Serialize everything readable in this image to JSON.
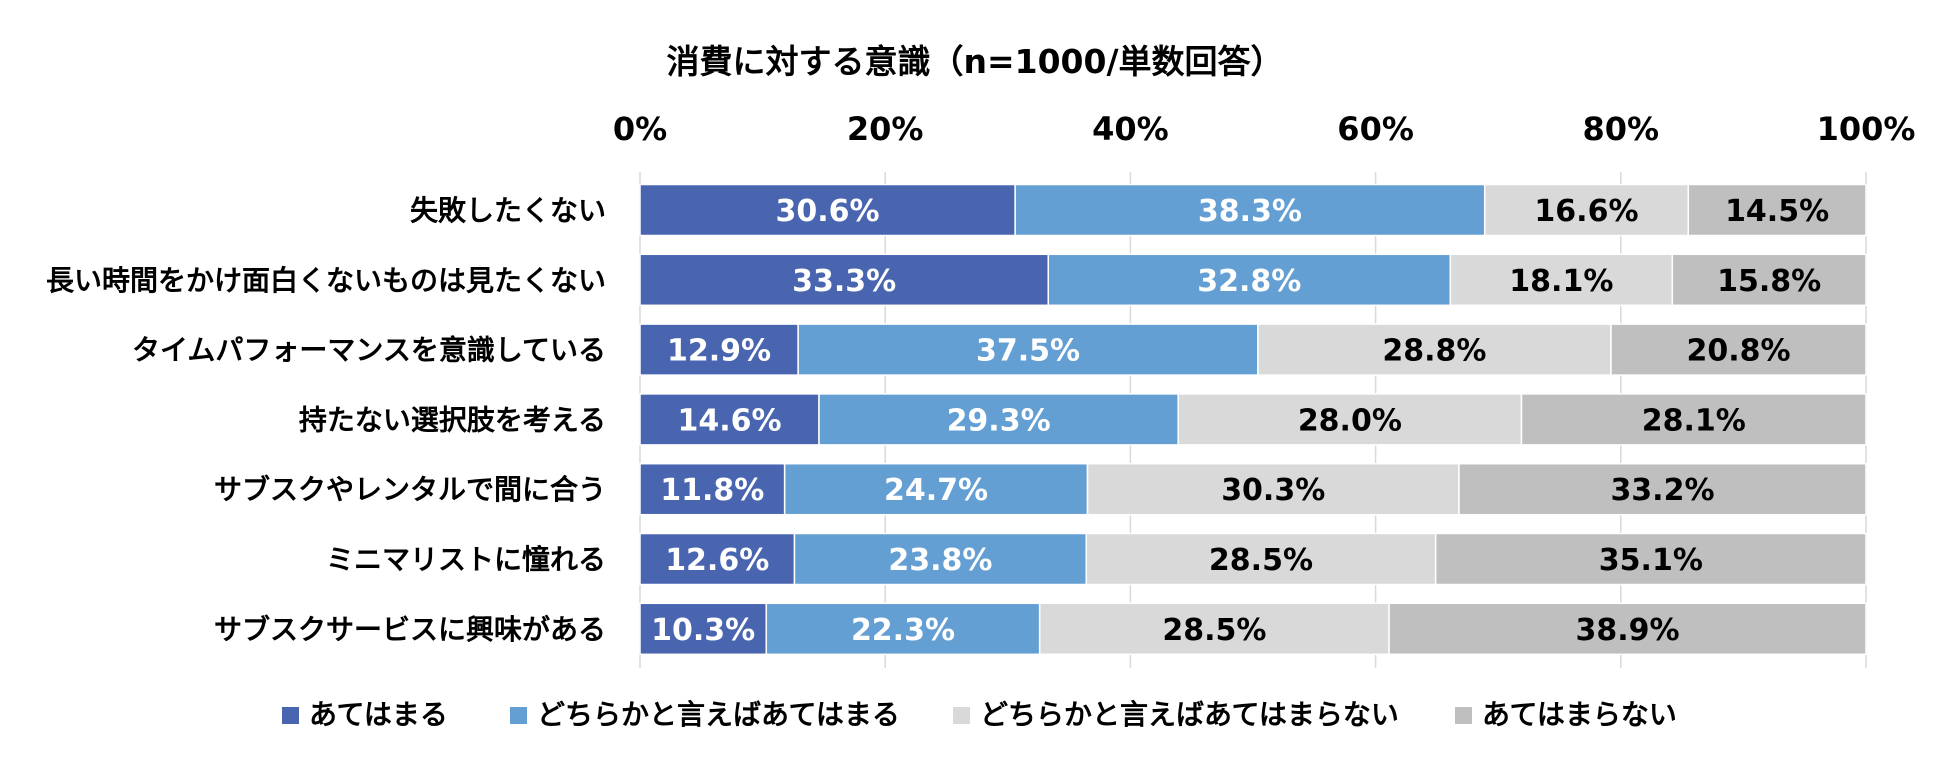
{
  "chart_data": {
    "type": "bar",
    "orientation": "horizontal",
    "stacked": true,
    "title": "消費に対する意識（n=1000/単数回答）",
    "xlim": [
      0,
      100
    ],
    "xticks": [
      0,
      20,
      40,
      60,
      80,
      100
    ],
    "tick_suffix": "%",
    "grid": true,
    "legend_position": "bottom",
    "categories": [
      "失敗したくない",
      "長い時間をかけ面白くないものは見たくない",
      "タイムパフォーマンスを意識している",
      "持たない選択肢を考える",
      "サブスクやレンタルで間に合う",
      "ミニマリストに憧れる",
      "サブスクサービスに興味がある"
    ],
    "series": [
      {
        "name": "あてはまる",
        "color": "#4a65b0",
        "text_color": "#ffffff",
        "values": [
          30.6,
          33.3,
          12.9,
          14.6,
          11.8,
          12.6,
          10.3
        ]
      },
      {
        "name": "どちらかと言えばあてはまる",
        "color": "#649fd4",
        "text_color": "#ffffff",
        "values": [
          38.3,
          32.8,
          37.5,
          29.3,
          24.7,
          23.8,
          22.3
        ]
      },
      {
        "name": "どちらかと言えばあてはまらない",
        "color": "#d9d9d9",
        "text_color": "#000000",
        "values": [
          16.6,
          18.1,
          28.8,
          28.0,
          30.3,
          28.5,
          28.5
        ]
      },
      {
        "name": "あてはまらない",
        "color": "#bfbfbf",
        "text_color": "#000000",
        "values": [
          14.5,
          15.8,
          20.8,
          28.1,
          33.2,
          35.1,
          38.9
        ]
      }
    ]
  }
}
